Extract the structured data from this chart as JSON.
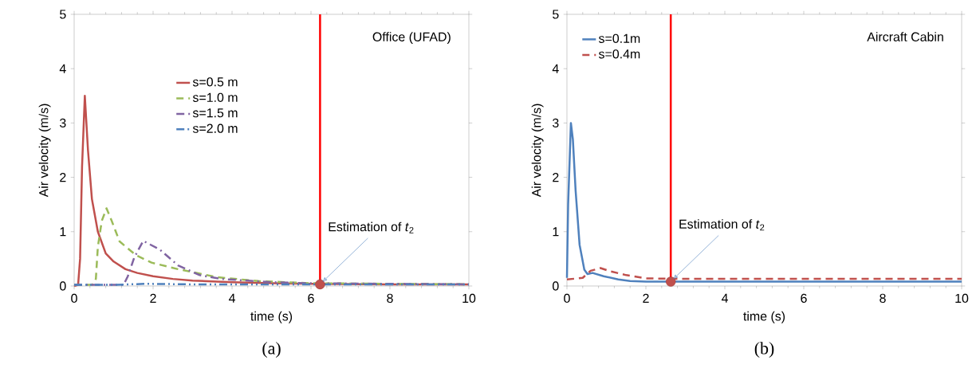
{
  "chart_data": [
    {
      "type": "line",
      "xlabel": "time (s)",
      "ylabel": "Air velocity (m/s)",
      "xlim": [
        0,
        10
      ],
      "ylim": [
        0,
        5
      ],
      "xticks": [
        0,
        2,
        4,
        6,
        8,
        10
      ],
      "yticks": [
        0,
        1,
        2,
        3,
        4,
        5
      ],
      "legend": "center",
      "series": [
        {
          "name": "s=0.5 m",
          "color": "#c0504d",
          "line_style": "solid",
          "x": [
            0,
            0.1,
            0.15,
            0.2,
            0.27,
            0.35,
            0.45,
            0.6,
            0.8,
            1.0,
            1.3,
            1.6,
            2,
            2.5,
            3,
            4,
            5,
            6,
            8,
            10
          ],
          "values": [
            0,
            0.02,
            0.5,
            2.2,
            3.5,
            2.5,
            1.6,
            1.0,
            0.6,
            0.45,
            0.31,
            0.24,
            0.18,
            0.13,
            0.1,
            0.07,
            0.05,
            0.04,
            0.03,
            0.03
          ]
        },
        {
          "name": "s=1.0 m",
          "color": "#9bbb59",
          "line_style": "dashed",
          "x": [
            0,
            0.45,
            0.55,
            0.6,
            0.7,
            0.82,
            0.95,
            1.15,
            1.56,
            1.96,
            2.63,
            3.64,
            4.66,
            6,
            8,
            10
          ],
          "values": [
            0.02,
            0.02,
            0.13,
            0.72,
            1.2,
            1.43,
            1.2,
            0.82,
            0.57,
            0.43,
            0.31,
            0.16,
            0.09,
            0.05,
            0.04,
            0.03
          ]
        },
        {
          "name": "s=1.5 m",
          "color": "#8064a2",
          "line_style": "dashdot",
          "x": [
            0,
            1.25,
            1.36,
            1.52,
            1.75,
            2.17,
            2.63,
            3.18,
            3.72,
            5,
            6,
            8,
            10
          ],
          "values": [
            0.02,
            0.02,
            0.18,
            0.52,
            0.83,
            0.67,
            0.38,
            0.2,
            0.13,
            0.07,
            0.05,
            0.04,
            0.03
          ]
        },
        {
          "name": "s=2.0 m",
          "color": "#4f81bd",
          "line_style": "dashdotdot",
          "x": [
            0,
            1,
            1.8,
            3,
            5,
            10
          ],
          "values": [
            0.02,
            0.02,
            0.04,
            0.03,
            0.03,
            0.03
          ]
        }
      ],
      "ref_lines": [
        {
          "axis": "x",
          "value": 6.23,
          "color": "#ff0000"
        }
      ],
      "annotations": [
        "Office (UFAD)",
        "(a)",
        {
          "text": "Estimation of *t*$_{2}$",
          "x": 6.23,
          "y": 0.03
        }
      ]
    },
    {
      "type": "line",
      "xlabel": "time (s)",
      "ylabel": "Air velocity (m/s)",
      "xlim": [
        0,
        10
      ],
      "ylim": [
        0,
        5
      ],
      "xticks": [
        0,
        2,
        4,
        6,
        8,
        10
      ],
      "yticks": [
        0,
        1,
        2,
        3,
        4,
        5
      ],
      "legend": "top left",
      "series": [
        {
          "name": "s=0.1m",
          "color": "#4f81bd",
          "line_style": "solid",
          "x": [
            0,
            0.03,
            0.1,
            0.15,
            0.22,
            0.32,
            0.44,
            0.52,
            0.65,
            0.93,
            1.3,
            1.6,
            2,
            3,
            5,
            10
          ],
          "values": [
            0.15,
            1.5,
            3.0,
            2.7,
            1.75,
            0.76,
            0.3,
            0.22,
            0.24,
            0.18,
            0.12,
            0.09,
            0.08,
            0.08,
            0.08,
            0.08
          ]
        },
        {
          "name": "s=0.4m",
          "color": "#c0504d",
          "line_style": "dashed",
          "x": [
            0,
            0.4,
            0.6,
            0.85,
            1.1,
            1.5,
            2,
            3,
            5,
            10
          ],
          "values": [
            0.12,
            0.15,
            0.28,
            0.33,
            0.27,
            0.2,
            0.14,
            0.13,
            0.13,
            0.13
          ]
        }
      ],
      "ref_lines": [
        {
          "axis": "x",
          "value": 2.63,
          "color": "#ff0000"
        }
      ],
      "annotations": [
        "Aircraft Cabin",
        "(b)",
        {
          "text": "Estimation of *t*$_{2}$",
          "x": 2.63,
          "y": 0.08
        }
      ]
    }
  ]
}
